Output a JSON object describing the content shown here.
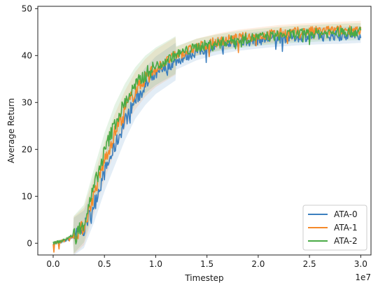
{
  "chart_data": {
    "type": "line",
    "title": "",
    "xlabel": "Timestep",
    "ylabel": "Average Return",
    "x_offset_label": "1e7",
    "xlim": [
      -0.15,
      3.1
    ],
    "ylim": [
      -2.5,
      50.5
    ],
    "xticks": [
      0.0,
      0.5,
      1.0,
      1.5,
      2.0,
      2.5,
      3.0
    ],
    "xtick_labels": [
      "0.0",
      "0.5",
      "1.0",
      "1.5",
      "2.0",
      "2.5",
      "3.0"
    ],
    "yticks": [
      0,
      10,
      20,
      30,
      40,
      50
    ],
    "ytick_labels": [
      "0",
      "10",
      "20",
      "30",
      "40",
      "50"
    ],
    "grid": false,
    "legend_position": "bottom-right",
    "series": [
      {
        "name": "ATA-0",
        "color": "#3b7fbf",
        "x": [
          0.0,
          0.1,
          0.2,
          0.3,
          0.4,
          0.5,
          0.6,
          0.7,
          0.8,
          0.9,
          1.0,
          1.2,
          1.4,
          1.6,
          1.8,
          2.0,
          2.2,
          2.4,
          2.6,
          2.8,
          3.0
        ],
        "y": [
          0.0,
          0.4,
          1.4,
          3.0,
          8.5,
          15.0,
          20.5,
          26.0,
          30.5,
          33.5,
          35.8,
          38.8,
          40.8,
          42.0,
          42.8,
          43.3,
          43.7,
          44.0,
          44.2,
          44.3,
          44.5
        ]
      },
      {
        "name": "ATA-1",
        "color": "#f5892a",
        "x": [
          0.0,
          0.1,
          0.2,
          0.3,
          0.4,
          0.5,
          0.6,
          0.7,
          0.8,
          0.9,
          1.0,
          1.2,
          1.4,
          1.6,
          1.8,
          2.0,
          2.2,
          2.4,
          2.6,
          2.8,
          3.0
        ],
        "y": [
          0.0,
          0.5,
          1.6,
          3.6,
          10.5,
          17.5,
          23.5,
          28.5,
          32.5,
          35.3,
          37.3,
          40.0,
          41.8,
          42.9,
          43.7,
          44.2,
          44.7,
          45.0,
          45.2,
          45.4,
          45.6
        ]
      },
      {
        "name": "ATA-2",
        "color": "#4aaa45",
        "x": [
          0.0,
          0.1,
          0.2,
          0.3,
          0.4,
          0.5,
          0.6,
          0.7,
          0.8,
          0.9,
          1.0,
          1.2,
          1.4,
          1.6,
          1.8,
          2.0,
          2.2,
          2.4,
          2.6,
          2.8,
          3.0
        ],
        "y": [
          0.0,
          0.6,
          1.8,
          4.2,
          12.0,
          19.5,
          25.5,
          30.0,
          33.5,
          36.0,
          37.7,
          40.2,
          41.8,
          42.7,
          43.4,
          43.9,
          44.3,
          44.6,
          44.8,
          45.0,
          45.1
        ]
      }
    ]
  }
}
